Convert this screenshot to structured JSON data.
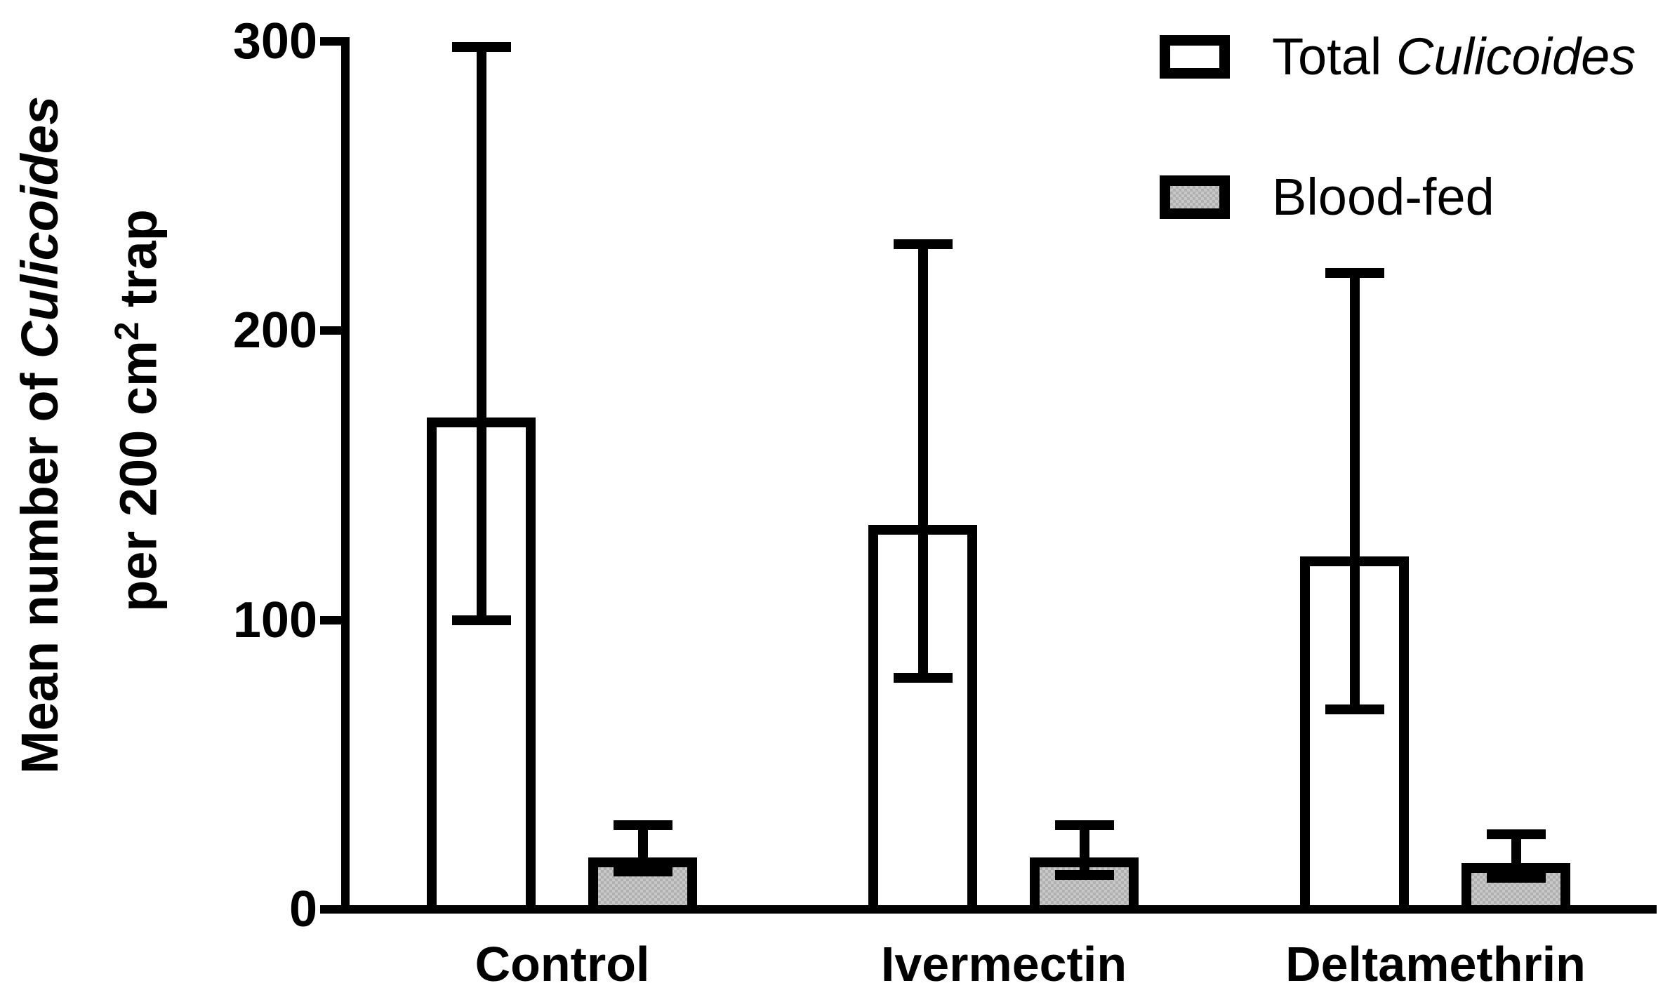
{
  "figure": {
    "background": "#ffffff",
    "bar_border_color": "#000000",
    "axis_color": "#000000"
  },
  "ylabel": {
    "line1_pre": "Mean number of ",
    "line1_italic": "Culicoides",
    "line2_pre": "per 200 cm",
    "line2_sup": "2",
    "line2_post": " trap"
  },
  "legend": [
    {
      "text_regular": "Total ",
      "text_italic": "Culicoides",
      "swatch_fill": "#ffffff",
      "swatch_pattern": "none"
    },
    {
      "text_regular": "Blood-fed",
      "text_italic": "",
      "swatch_fill": "#bdbdbd",
      "swatch_pattern": "halftone"
    }
  ],
  "chart_data": {
    "type": "bar",
    "title": "",
    "xlabel": "",
    "ylabel": "Mean number of Culicoides per 200 cm² trap",
    "categories": [
      "Control",
      "Ivermectin",
      "Deltamethrin"
    ],
    "yticks": [
      0,
      100,
      200,
      300
    ],
    "ylim": [
      0,
      300
    ],
    "grid": false,
    "legend_position": "top-right",
    "error_bar_style": "capped, asymmetric, drawn over bars",
    "series": [
      {
        "name": "Total Culicoides",
        "fill": "#ffffff",
        "pattern": "none",
        "values": [
          170,
          133,
          122
        ],
        "err_low": [
          100,
          80,
          69
        ],
        "err_high": [
          298,
          230,
          220
        ]
      },
      {
        "name": "Blood-fed",
        "fill": "#bdbdbd",
        "pattern": "halftone",
        "values": [
          18,
          18,
          16
        ],
        "err_low": [
          13,
          12,
          11
        ],
        "err_high": [
          29,
          29,
          26
        ]
      }
    ]
  }
}
